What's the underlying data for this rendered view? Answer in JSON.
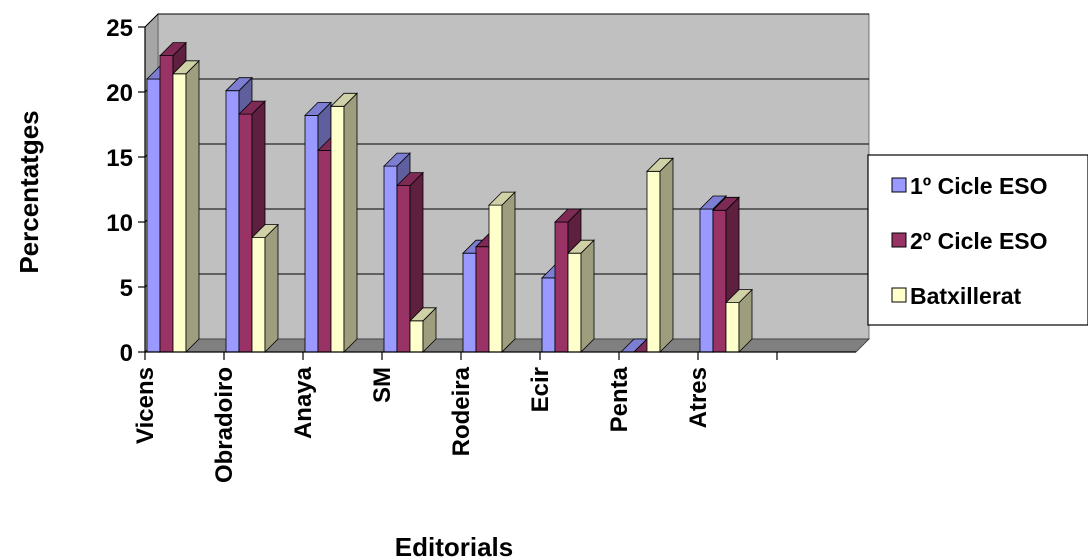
{
  "chart_data": {
    "type": "bar",
    "title": "",
    "xlabel": "Editorials",
    "ylabel": "Percentatges",
    "ylim": [
      0,
      25
    ],
    "yticks": [
      0,
      5,
      10,
      15,
      20,
      25
    ],
    "grid": true,
    "legend_position": "right",
    "categories": [
      "Vicens",
      "Obradoiro",
      "Anaya",
      "SM",
      "Rodeira",
      "Ecir",
      "Penta",
      "Atres"
    ],
    "series": [
      {
        "name": "1º Cicle ESO",
        "color": "#9999ff",
        "values": [
          21,
          20.1,
          18.2,
          14.3,
          7.6,
          5.7,
          0,
          11
        ]
      },
      {
        "name": "2º Cicle ESO",
        "color": "#993366",
        "values": [
          22.8,
          18.3,
          15.5,
          12.8,
          8.1,
          10.0,
          0,
          10.9
        ]
      },
      {
        "name": "Batxillerat",
        "color": "#ffffcc",
        "values": [
          21.4,
          8.8,
          18.9,
          2.4,
          11.3,
          7.6,
          13.9,
          3.8
        ]
      }
    ]
  }
}
